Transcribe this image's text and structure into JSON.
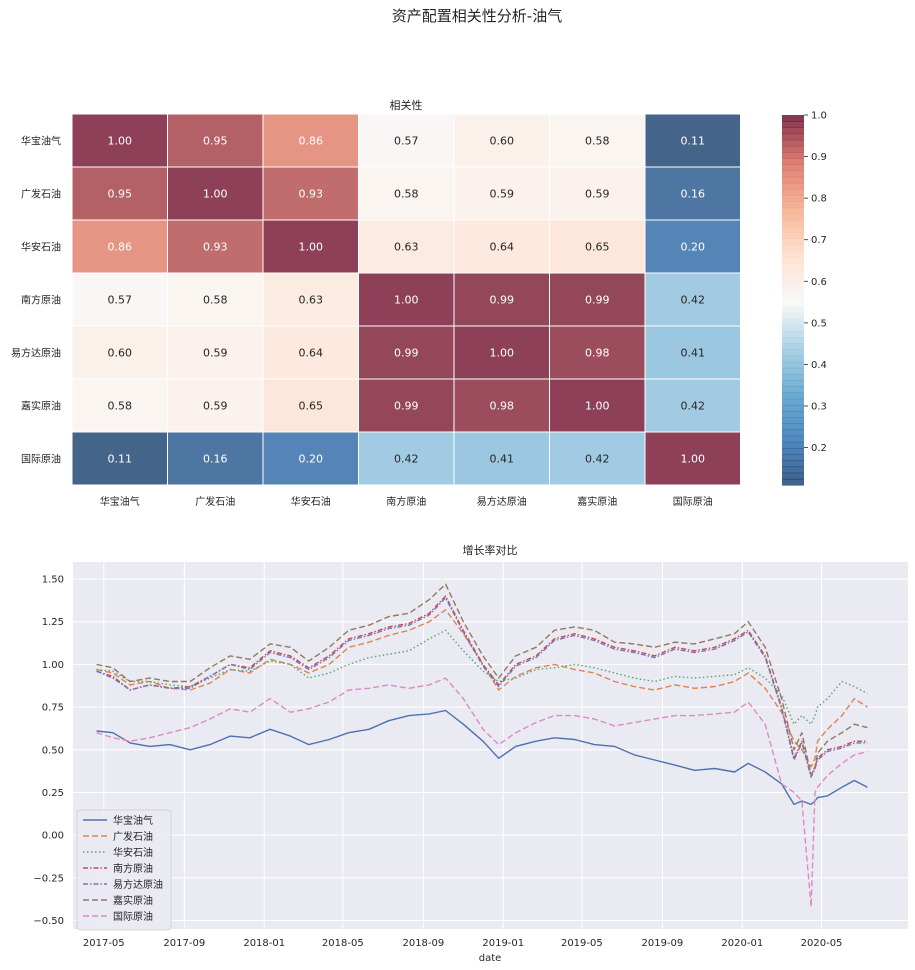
{
  "figure": {
    "suptitle": "资产配置相关性分析-油气"
  },
  "colors": {
    "background_axes": "#eaeaf2",
    "grid": "#ffffff",
    "series": [
      "#4c72b0",
      "#dd8452",
      "#55a868",
      "#c44e52",
      "#8172b3",
      "#937860",
      "#da8bc3"
    ],
    "colormap": "RdBu_r"
  },
  "chart_data": [
    {
      "type": "heatmap",
      "title": "相关性",
      "labels": [
        "华宝油气",
        "广发石油",
        "华安石油",
        "南方原油",
        "易方达原油",
        "嘉实原油",
        "国际原油"
      ],
      "values": [
        [
          1.0,
          0.95,
          0.86,
          0.57,
          0.6,
          0.58,
          0.11
        ],
        [
          0.95,
          1.0,
          0.93,
          0.58,
          0.59,
          0.59,
          0.16
        ],
        [
          0.86,
          0.93,
          1.0,
          0.63,
          0.64,
          0.65,
          0.2
        ],
        [
          0.57,
          0.58,
          0.63,
          1.0,
          0.99,
          0.99,
          0.42
        ],
        [
          0.6,
          0.59,
          0.64,
          0.99,
          1.0,
          0.98,
          0.41
        ],
        [
          0.58,
          0.59,
          0.65,
          0.99,
          0.98,
          1.0,
          0.42
        ],
        [
          0.11,
          0.16,
          0.2,
          0.42,
          0.41,
          0.42,
          1.0
        ]
      ],
      "value_format": "0.00",
      "colorbar": {
        "range": [
          0.11,
          1.0
        ],
        "ticks": [
          0.2,
          0.3,
          0.4,
          0.5,
          0.6,
          0.7,
          0.8,
          0.9,
          1.0
        ],
        "tick_labels": [
          "0.2",
          "0.3",
          "0.4",
          "0.5",
          "0.6",
          "0.7",
          "0.8",
          "0.9",
          "1.0"
        ]
      }
    },
    {
      "type": "line",
      "title": "增长率对比",
      "xlabel": "date",
      "ylabel": "",
      "ylim": [
        -0.55,
        1.6
      ],
      "yticks": [
        -0.5,
        -0.25,
        0.0,
        0.25,
        0.5,
        0.75,
        1.0,
        1.25,
        1.5
      ],
      "ytick_labels": [
        "−0.50",
        "−0.25",
        "0.00",
        "0.25",
        "0.50",
        "0.75",
        "1.00",
        "1.25",
        "1.50"
      ],
      "xticks": [
        "2017-05",
        "2017-09",
        "2018-01",
        "2018-05",
        "2018-09",
        "2019-01",
        "2019-05",
        "2019-09",
        "2020-01",
        "2020-05"
      ],
      "xlim": [
        "2017-03-15",
        "2020-09-10"
      ],
      "grid": true,
      "legend_placement": "lower-left",
      "x": [
        "2017-04-20",
        "2017-05-15",
        "2017-06-10",
        "2017-07-10",
        "2017-08-10",
        "2017-09-10",
        "2017-10-10",
        "2017-11-10",
        "2017-12-10",
        "2018-01-10",
        "2018-02-10",
        "2018-03-10",
        "2018-04-10",
        "2018-05-10",
        "2018-06-10",
        "2018-07-10",
        "2018-08-10",
        "2018-09-10",
        "2018-10-05",
        "2018-11-01",
        "2018-12-01",
        "2018-12-25",
        "2019-01-20",
        "2019-02-20",
        "2019-03-20",
        "2019-04-20",
        "2019-05-20",
        "2019-06-20",
        "2019-07-20",
        "2019-08-20",
        "2019-09-20",
        "2019-10-20",
        "2019-11-20",
        "2019-12-20",
        "2020-01-10",
        "2020-02-05",
        "2020-03-01",
        "2020-03-20",
        "2020-04-01",
        "2020-04-15",
        "2020-04-21",
        "2020-04-25",
        "2020-05-10",
        "2020-06-01",
        "2020-06-20",
        "2020-07-10"
      ],
      "series": [
        {
          "name": "华宝油气",
          "style": "solid",
          "values": [
            0.61,
            0.6,
            0.54,
            0.52,
            0.53,
            0.5,
            0.53,
            0.58,
            0.57,
            0.62,
            0.58,
            0.53,
            0.56,
            0.6,
            0.62,
            0.67,
            0.7,
            0.71,
            0.73,
            0.65,
            0.55,
            0.45,
            0.52,
            0.55,
            0.57,
            0.56,
            0.53,
            0.52,
            0.47,
            0.44,
            0.41,
            0.38,
            0.39,
            0.37,
            0.42,
            0.37,
            0.3,
            0.18,
            0.2,
            0.18,
            0.2,
            0.22,
            0.23,
            0.28,
            0.32,
            0.28
          ]
        },
        {
          "name": "广发石油",
          "style": "dashed",
          "values": [
            0.97,
            0.95,
            0.88,
            0.9,
            0.86,
            0.85,
            0.89,
            0.97,
            0.95,
            1.03,
            1.0,
            0.95,
            1.0,
            1.1,
            1.13,
            1.17,
            1.2,
            1.25,
            1.32,
            1.18,
            1.0,
            0.85,
            0.93,
            0.98,
            1.0,
            0.97,
            0.95,
            0.9,
            0.87,
            0.85,
            0.88,
            0.86,
            0.87,
            0.9,
            0.95,
            0.86,
            0.72,
            0.55,
            0.5,
            0.4,
            0.45,
            0.55,
            0.62,
            0.7,
            0.8,
            0.75
          ]
        },
        {
          "name": "华安石油",
          "style": "dotted",
          "values": [
            0.97,
            0.96,
            0.9,
            0.9,
            0.88,
            0.87,
            0.92,
            0.97,
            0.96,
            1.02,
            1.0,
            0.92,
            0.95,
            1.0,
            1.04,
            1.06,
            1.08,
            1.15,
            1.2,
            1.08,
            0.96,
            0.9,
            0.92,
            0.97,
            0.98,
            1.0,
            0.98,
            0.95,
            0.92,
            0.9,
            0.93,
            0.92,
            0.93,
            0.94,
            0.98,
            0.92,
            0.82,
            0.65,
            0.7,
            0.65,
            0.7,
            0.75,
            0.8,
            0.9,
            0.87,
            0.83
          ]
        },
        {
          "name": "南方原油",
          "style": "dashdot",
          "values": [
            0.96,
            0.93,
            0.85,
            0.88,
            0.86,
            0.87,
            0.93,
            1.0,
            0.98,
            1.08,
            1.05,
            0.98,
            1.05,
            1.15,
            1.18,
            1.22,
            1.24,
            1.3,
            1.4,
            1.2,
            1.0,
            0.88,
            1.0,
            1.05,
            1.15,
            1.18,
            1.15,
            1.1,
            1.08,
            1.05,
            1.1,
            1.08,
            1.1,
            1.15,
            1.2,
            1.05,
            0.75,
            0.45,
            0.55,
            0.35,
            0.4,
            0.45,
            0.5,
            0.52,
            0.55,
            0.55
          ]
        },
        {
          "name": "易方达原油",
          "style": "dashdot",
          "values": [
            0.96,
            0.92,
            0.85,
            0.88,
            0.86,
            0.86,
            0.93,
            1.0,
            0.97,
            1.07,
            1.04,
            0.97,
            1.04,
            1.14,
            1.17,
            1.21,
            1.23,
            1.29,
            1.39,
            1.19,
            0.99,
            0.87,
            0.99,
            1.04,
            1.14,
            1.17,
            1.14,
            1.09,
            1.07,
            1.04,
            1.09,
            1.07,
            1.09,
            1.14,
            1.19,
            1.04,
            0.74,
            0.44,
            0.54,
            0.34,
            0.39,
            0.44,
            0.49,
            0.51,
            0.54,
            0.54
          ]
        },
        {
          "name": "嘉实原油",
          "style": "dashed",
          "values": [
            1.0,
            0.98,
            0.9,
            0.92,
            0.9,
            0.9,
            0.98,
            1.05,
            1.03,
            1.12,
            1.1,
            1.02,
            1.1,
            1.2,
            1.23,
            1.28,
            1.3,
            1.38,
            1.47,
            1.25,
            1.05,
            0.92,
            1.05,
            1.1,
            1.2,
            1.22,
            1.2,
            1.13,
            1.12,
            1.1,
            1.13,
            1.12,
            1.15,
            1.18,
            1.25,
            1.1,
            0.8,
            0.5,
            0.6,
            0.35,
            0.4,
            0.48,
            0.55,
            0.6,
            0.65,
            0.63
          ]
        },
        {
          "name": "国际原油",
          "style": "dashed",
          "values": [
            0.6,
            0.57,
            0.55,
            0.57,
            0.6,
            0.63,
            0.68,
            0.74,
            0.72,
            0.8,
            0.72,
            0.74,
            0.78,
            0.85,
            0.86,
            0.88,
            0.86,
            0.88,
            0.92,
            0.8,
            0.62,
            0.53,
            0.6,
            0.66,
            0.7,
            0.7,
            0.68,
            0.64,
            0.66,
            0.68,
            0.7,
            0.7,
            0.71,
            0.72,
            0.78,
            0.65,
            0.3,
            0.25,
            0.2,
            -0.42,
            0.25,
            0.28,
            0.35,
            0.42,
            0.47,
            0.49
          ]
        }
      ]
    }
  ]
}
